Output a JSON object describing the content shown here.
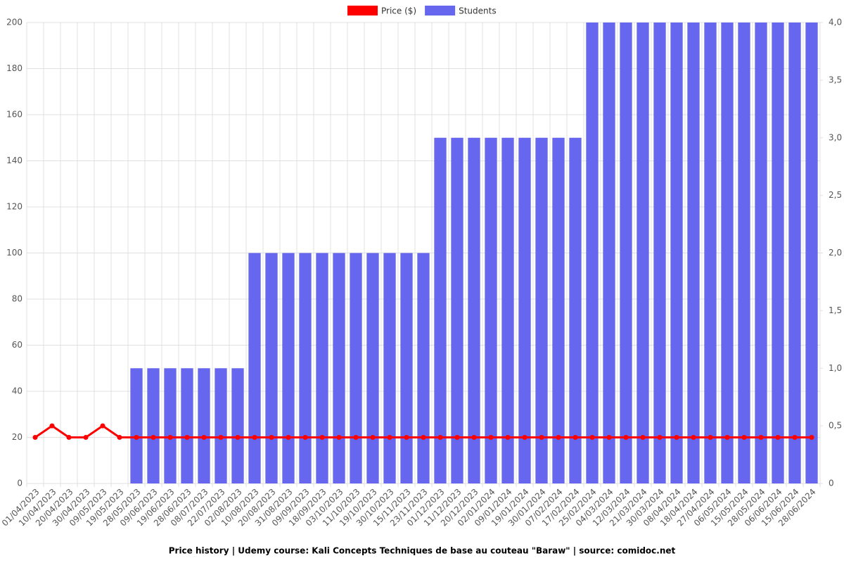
{
  "chart_data": {
    "type": "bar_line",
    "title": "Price history | Udemy course: Kali Concepts Techniques de base au couteau \"Baraw\" | source: comidoc.net",
    "categories": [
      "01/04/2023",
      "10/04/2023",
      "20/04/2023",
      "30/04/2023",
      "09/05/2023",
      "19/05/2023",
      "28/05/2023",
      "09/06/2023",
      "19/06/2023",
      "28/06/2023",
      "08/07/2023",
      "22/07/2023",
      "02/08/2023",
      "10/08/2023",
      "20/08/2023",
      "31/08/2023",
      "09/09/2023",
      "18/09/2023",
      "03/10/2023",
      "11/10/2023",
      "19/10/2023",
      "30/10/2023",
      "15/11/2023",
      "23/11/2023",
      "01/12/2023",
      "11/12/2023",
      "20/12/2023",
      "02/01/2024",
      "09/01/2024",
      "19/01/2024",
      "30/01/2024",
      "07/02/2024",
      "17/02/2024",
      "25/02/2024",
      "04/03/2024",
      "12/03/2024",
      "21/03/2024",
      "30/03/2024",
      "08/04/2024",
      "18/04/2024",
      "27/04/2024",
      "06/05/2024",
      "15/05/2024",
      "28/05/2024",
      "06/06/2024",
      "15/06/2024",
      "28/06/2024"
    ],
    "series": [
      {
        "name": "Price ($)",
        "type": "line",
        "color": "#ff0000",
        "axis": "y",
        "values": [
          20,
          25,
          20,
          20,
          25,
          20,
          20,
          20,
          20,
          20,
          20,
          20,
          20,
          20,
          20,
          20,
          20,
          20,
          20,
          20,
          20,
          20,
          20,
          20,
          20,
          20,
          20,
          20,
          20,
          20,
          20,
          20,
          20,
          20,
          20,
          20,
          20,
          20,
          20,
          20,
          20,
          20,
          20,
          20,
          20,
          20,
          20
        ]
      },
      {
        "name": "Students",
        "type": "bar",
        "color": "#6666ee",
        "axis": "y2",
        "values": [
          0,
          0,
          0,
          0,
          0,
          0,
          1,
          1,
          1,
          1,
          1,
          1,
          1,
          2,
          2,
          2,
          2,
          2,
          2,
          2,
          2,
          2,
          2,
          2,
          3,
          3,
          3,
          3,
          3,
          3,
          3,
          3,
          3,
          4,
          4,
          4,
          4,
          4,
          4,
          4,
          4,
          4,
          4,
          4,
          4,
          4,
          4
        ]
      }
    ],
    "ylim": [
      0,
      200
    ],
    "yticks": [
      0,
      20,
      40,
      60,
      80,
      100,
      120,
      140,
      160,
      180,
      200
    ],
    "y2lim": [
      0,
      4
    ],
    "y2ticks": [
      0,
      {
        "value": 0.5,
        "label": "0,5"
      },
      {
        "value": 1,
        "label": "1,0"
      },
      {
        "value": 1.5,
        "label": "1,5"
      },
      {
        "value": 2,
        "label": "2,0"
      },
      {
        "value": 2.5,
        "label": "2,5"
      },
      {
        "value": 3,
        "label": "3,0"
      },
      {
        "value": 3.5,
        "label": "3,5"
      },
      {
        "value": 4,
        "label": "4,0"
      }
    ],
    "grid": true
  }
}
